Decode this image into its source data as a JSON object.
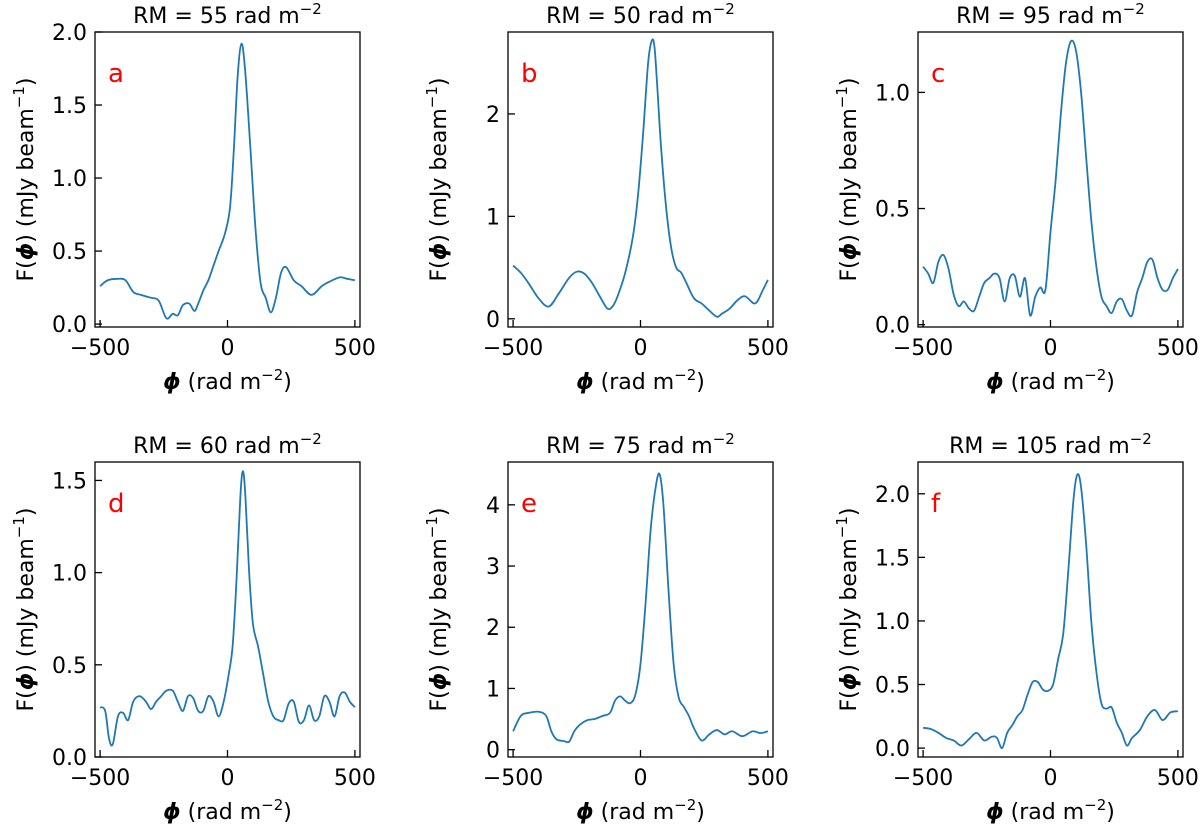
{
  "colors": {
    "line": "#1f77b4",
    "panel_letter": "#ff0000",
    "axes": "#000000"
  },
  "chart_data": [
    {
      "type": "line",
      "letter": "a",
      "title": {
        "prefix": "RM = 55 rad m",
        "exp": "−2"
      },
      "xlabel": {
        "sym": "ϕ",
        "unit": " (rad m",
        "exp": "−2",
        "close": ")"
      },
      "ylabel": {
        "pre": "F(",
        "sym": "ϕ",
        "unit": ") (mJy beam",
        "exp": "−1",
        "close": ")"
      },
      "xlim": [
        -520,
        520
      ],
      "ylim": [
        -0.02,
        2.0
      ],
      "xticks": [
        -500,
        0,
        500
      ],
      "xtick_labels": [
        "−500",
        "0",
        "500"
      ],
      "yticks": [
        0.0,
        0.5,
        1.0,
        1.5,
        2.0
      ],
      "ytick_labels": [
        "0.0",
        "0.5",
        "1.0",
        "1.5",
        "2.0"
      ],
      "x": [
        -500,
        -470,
        -430,
        -400,
        -370,
        -340,
        -300,
        -270,
        -240,
        -215,
        -195,
        -175,
        -150,
        -130,
        -115,
        -95,
        -75,
        -55,
        -35,
        -10,
        10,
        25,
        40,
        55,
        70,
        90,
        110,
        130,
        150,
        170,
        190,
        210,
        230,
        260,
        290,
        330,
        370,
        400,
        440,
        470,
        500
      ],
      "y": [
        0.26,
        0.3,
        0.31,
        0.3,
        0.22,
        0.2,
        0.18,
        0.16,
        0.04,
        0.07,
        0.06,
        0.13,
        0.14,
        0.09,
        0.14,
        0.23,
        0.3,
        0.4,
        0.5,
        0.62,
        0.8,
        1.2,
        1.7,
        1.92,
        1.72,
        1.2,
        0.65,
        0.28,
        0.18,
        0.08,
        0.18,
        0.35,
        0.39,
        0.3,
        0.26,
        0.2,
        0.26,
        0.29,
        0.32,
        0.31,
        0.3
      ]
    },
    {
      "type": "line",
      "letter": "b",
      "title": {
        "prefix": "RM = 50 rad m",
        "exp": "−2"
      },
      "xlabel": {
        "sym": "ϕ",
        "unit": " (rad m",
        "exp": "−2",
        "close": ")"
      },
      "ylabel": {
        "pre": "F(",
        "sym": "ϕ",
        "unit": ") (mJy beam",
        "exp": "−1",
        "close": ")"
      },
      "xlim": [
        -520,
        520
      ],
      "ylim": [
        -0.08,
        2.8
      ],
      "xticks": [
        -500,
        0,
        500
      ],
      "xtick_labels": [
        "−500",
        "0",
        "500"
      ],
      "yticks": [
        0,
        1,
        2
      ],
      "ytick_labels": [
        "0",
        "1",
        "2"
      ],
      "x": [
        -500,
        -470,
        -440,
        -400,
        -360,
        -320,
        -280,
        -250,
        -220,
        -190,
        -160,
        -130,
        -110,
        -90,
        -60,
        -30,
        -10,
        10,
        30,
        45,
        55,
        65,
        80,
        100,
        120,
        140,
        160,
        180,
        210,
        240,
        270,
        300,
        320,
        350,
        380,
        410,
        450,
        480,
        500
      ],
      "y": [
        0.52,
        0.45,
        0.35,
        0.2,
        0.12,
        0.25,
        0.4,
        0.46,
        0.44,
        0.35,
        0.22,
        0.1,
        0.12,
        0.22,
        0.45,
        0.8,
        1.2,
        1.8,
        2.5,
        2.72,
        2.65,
        2.3,
        1.7,
        1.1,
        0.7,
        0.5,
        0.45,
        0.35,
        0.2,
        0.15,
        0.08,
        0.02,
        0.05,
        0.1,
        0.18,
        0.22,
        0.15,
        0.28,
        0.38
      ]
    },
    {
      "type": "line",
      "letter": "c",
      "title": {
        "prefix": "RM = 95 rad m",
        "exp": "−2"
      },
      "xlabel": {
        "sym": "ϕ",
        "unit": " (rad m",
        "exp": "−2",
        "close": ")"
      },
      "ylabel": {
        "pre": "F(",
        "sym": "ϕ",
        "unit": ") (mJy beam",
        "exp": "−1",
        "close": ")"
      },
      "xlim": [
        -520,
        520
      ],
      "ylim": [
        -0.01,
        1.26
      ],
      "xticks": [
        -500,
        0,
        500
      ],
      "xtick_labels": [
        "−500",
        "0",
        "500"
      ],
      "yticks": [
        0.0,
        0.5,
        1.0
      ],
      "ytick_labels": [
        "0.0",
        "0.5",
        "1.0"
      ],
      "x": [
        -500,
        -480,
        -460,
        -440,
        -420,
        -400,
        -380,
        -360,
        -340,
        -320,
        -300,
        -280,
        -260,
        -240,
        -220,
        -200,
        -180,
        -160,
        -140,
        -120,
        -100,
        -80,
        -60,
        -40,
        -20,
        0,
        20,
        40,
        60,
        80,
        100,
        120,
        140,
        160,
        180,
        200,
        220,
        240,
        260,
        280,
        300,
        320,
        340,
        360,
        380,
        400,
        420,
        440,
        460,
        480,
        500
      ],
      "y": [
        0.25,
        0.22,
        0.18,
        0.27,
        0.3,
        0.24,
        0.13,
        0.08,
        0.1,
        0.07,
        0.06,
        0.12,
        0.18,
        0.2,
        0.22,
        0.2,
        0.1,
        0.2,
        0.21,
        0.12,
        0.2,
        0.04,
        0.12,
        0.16,
        0.15,
        0.4,
        0.62,
        0.9,
        1.12,
        1.22,
        1.18,
        1.0,
        0.72,
        0.45,
        0.25,
        0.12,
        0.08,
        0.05,
        0.1,
        0.11,
        0.06,
        0.04,
        0.14,
        0.2,
        0.27,
        0.28,
        0.2,
        0.15,
        0.15,
        0.2,
        0.24
      ]
    },
    {
      "type": "line",
      "letter": "d",
      "title": {
        "prefix": "RM = 60 rad m",
        "exp": "−2"
      },
      "xlabel": {
        "sym": "ϕ",
        "unit": " (rad m",
        "exp": "−2",
        "close": ")"
      },
      "ylabel": {
        "pre": "F(",
        "sym": "ϕ",
        "unit": ") (mJy beam",
        "exp": "−1",
        "close": ")"
      },
      "xlim": [
        -520,
        520
      ],
      "ylim": [
        0.0,
        1.6
      ],
      "xticks": [
        -500,
        0,
        500
      ],
      "xtick_labels": [
        "−500",
        "0",
        "500"
      ],
      "yticks": [
        0.0,
        0.5,
        1.0,
        1.5
      ],
      "ytick_labels": [
        "0.0",
        "0.5",
        "1.0",
        "1.5"
      ],
      "x": [
        -500,
        -480,
        -465,
        -450,
        -430,
        -410,
        -390,
        -370,
        -345,
        -320,
        -300,
        -280,
        -260,
        -240,
        -215,
        -195,
        -175,
        -155,
        -135,
        -115,
        -95,
        -75,
        -55,
        -35,
        -15,
        5,
        20,
        35,
        50,
        60,
        70,
        85,
        100,
        120,
        140,
        160,
        180,
        200,
        220,
        240,
        260,
        280,
        300,
        320,
        340,
        360,
        380,
        400,
        420,
        440,
        460,
        480,
        500
      ],
      "y": [
        0.27,
        0.25,
        0.1,
        0.07,
        0.22,
        0.24,
        0.2,
        0.3,
        0.33,
        0.3,
        0.26,
        0.3,
        0.33,
        0.36,
        0.36,
        0.3,
        0.25,
        0.33,
        0.32,
        0.25,
        0.25,
        0.33,
        0.3,
        0.22,
        0.3,
        0.45,
        0.6,
        0.95,
        1.4,
        1.55,
        1.42,
        1.0,
        0.72,
        0.6,
        0.45,
        0.3,
        0.22,
        0.2,
        0.2,
        0.29,
        0.3,
        0.19,
        0.2,
        0.28,
        0.2,
        0.22,
        0.33,
        0.3,
        0.22,
        0.33,
        0.35,
        0.3,
        0.27
      ]
    },
    {
      "type": "line",
      "letter": "e",
      "title": {
        "prefix": "RM = 75 rad m",
        "exp": "−2"
      },
      "xlabel": {
        "sym": "ϕ",
        "unit": " (rad m",
        "exp": "−2",
        "close": ")"
      },
      "ylabel": {
        "pre": "F(",
        "sym": "ϕ",
        "unit": ") (mJy beam",
        "exp": "−1",
        "close": ")"
      },
      "xlim": [
        -520,
        520
      ],
      "ylim": [
        -0.12,
        4.7
      ],
      "xticks": [
        -500,
        0,
        500
      ],
      "xtick_labels": [
        "−500",
        "0",
        "500"
      ],
      "yticks": [
        0,
        1,
        2,
        3,
        4
      ],
      "ytick_labels": [
        "0",
        "1",
        "2",
        "3",
        "4"
      ],
      "x": [
        -500,
        -470,
        -440,
        -400,
        -370,
        -350,
        -330,
        -300,
        -280,
        -260,
        -240,
        -210,
        -180,
        -150,
        -120,
        -100,
        -80,
        -60,
        -40,
        -20,
        0,
        20,
        40,
        60,
        75,
        90,
        110,
        130,
        150,
        170,
        190,
        210,
        240,
        270,
        300,
        330,
        360,
        400,
        440,
        470,
        500
      ],
      "y": [
        0.3,
        0.55,
        0.6,
        0.62,
        0.55,
        0.3,
        0.17,
        0.14,
        0.13,
        0.3,
        0.4,
        0.48,
        0.5,
        0.55,
        0.6,
        0.8,
        0.87,
        0.8,
        0.76,
        0.9,
        1.4,
        2.4,
        3.6,
        4.3,
        4.5,
        4.0,
        2.6,
        1.4,
        0.85,
        0.7,
        0.55,
        0.35,
        0.15,
        0.25,
        0.32,
        0.25,
        0.3,
        0.22,
        0.3,
        0.27,
        0.3
      ]
    },
    {
      "type": "line",
      "letter": "f",
      "title": {
        "prefix": "RM = 105 rad m",
        "exp": "−2"
      },
      "xlabel": {
        "sym": "ϕ",
        "unit": " (rad m",
        "exp": "−2",
        "close": ")"
      },
      "ylabel": {
        "pre": "F(",
        "sym": "ϕ",
        "unit": ") (mJy beam",
        "exp": "−1",
        "close": ")"
      },
      "xlim": [
        -520,
        520
      ],
      "ylim": [
        -0.07,
        2.25
      ],
      "xticks": [
        -500,
        0,
        500
      ],
      "xtick_labels": [
        "−500",
        "0",
        "500"
      ],
      "yticks": [
        0.0,
        0.5,
        1.0,
        1.5,
        2.0
      ],
      "ytick_labels": [
        "0.0",
        "0.5",
        "1.0",
        "1.5",
        "2.0"
      ],
      "x": [
        -500,
        -470,
        -440,
        -410,
        -380,
        -350,
        -320,
        -290,
        -260,
        -230,
        -210,
        -190,
        -170,
        -150,
        -130,
        -110,
        -90,
        -70,
        -50,
        -30,
        -10,
        10,
        30,
        50,
        70,
        90,
        105,
        120,
        140,
        160,
        180,
        200,
        220,
        240,
        260,
        280,
        300,
        320,
        350,
        380,
        410,
        440,
        470,
        500
      ],
      "y": [
        0.16,
        0.15,
        0.12,
        0.08,
        0.06,
        0.02,
        0.07,
        0.12,
        0.06,
        0.09,
        0.08,
        0.0,
        0.12,
        0.18,
        0.25,
        0.3,
        0.42,
        0.52,
        0.52,
        0.46,
        0.45,
        0.5,
        0.7,
        0.9,
        1.4,
        1.95,
        2.15,
        2.05,
        1.6,
        1.0,
        0.6,
        0.35,
        0.31,
        0.32,
        0.2,
        0.12,
        0.02,
        0.08,
        0.14,
        0.25,
        0.3,
        0.22,
        0.28,
        0.29
      ]
    }
  ]
}
